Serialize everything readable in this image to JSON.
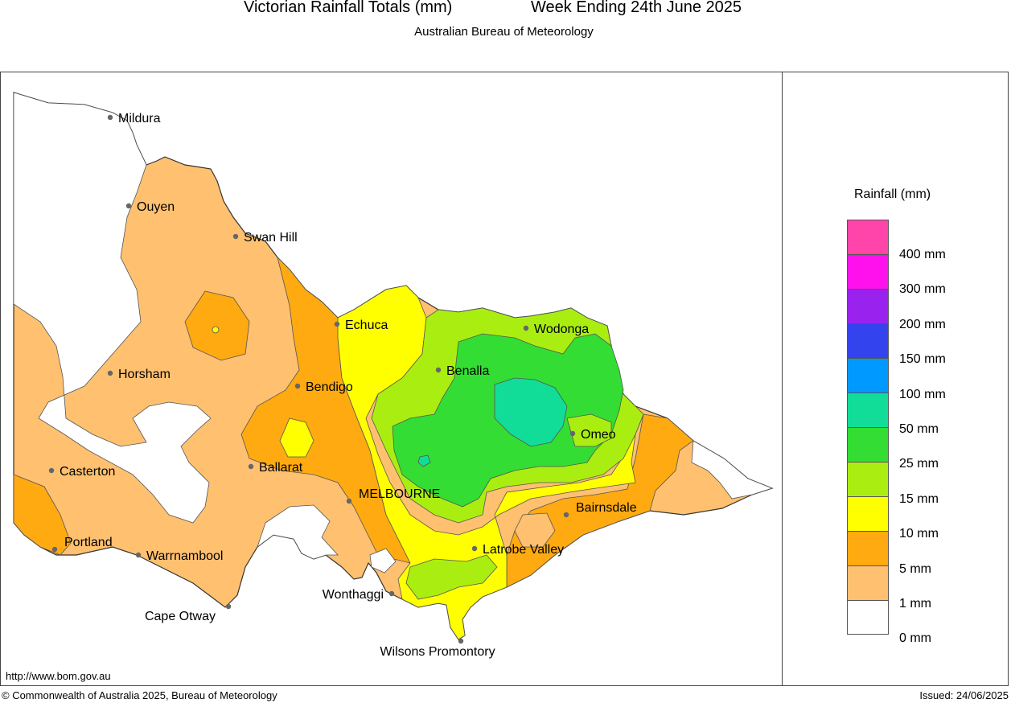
{
  "header": {
    "title": "Victorian Rainfall Totals (mm)",
    "period": "Week Ending 24th June 2025",
    "subtitle": "Australian Bureau of Meteorology"
  },
  "map": {
    "places": [
      {
        "name": "Mildura"
      },
      {
        "name": "Ouyen"
      },
      {
        "name": "Swan Hill"
      },
      {
        "name": "Echuca"
      },
      {
        "name": "Wodonga"
      },
      {
        "name": "Benalla"
      },
      {
        "name": "Horsham"
      },
      {
        "name": "Bendigo"
      },
      {
        "name": "Omeo"
      },
      {
        "name": "Ballarat"
      },
      {
        "name": "Casterton"
      },
      {
        "name": "MELBOURNE"
      },
      {
        "name": "Bairnsdale"
      },
      {
        "name": "Portland"
      },
      {
        "name": "Warrnambool"
      },
      {
        "name": "Latrobe Valley"
      },
      {
        "name": "Wonthaggi"
      },
      {
        "name": "Cape Otway"
      },
      {
        "name": "Wilsons Promontory"
      }
    ]
  },
  "legend": {
    "title": "Rainfall (mm)",
    "colors": [
      "#ff44aa",
      "#ff11ee",
      "#9922ee",
      "#3344ee",
      "#0099ff",
      "#11dd99",
      "#33dd33",
      "#aaee11",
      "#ffff00",
      "#ffaa11",
      "#ffc070",
      "#ffffff"
    ],
    "labels": [
      "400 mm",
      "300 mm",
      "200 mm",
      "150 mm",
      "100 mm",
      "50 mm",
      "25 mm",
      "15 mm",
      "10 mm",
      "5 mm",
      "1 mm",
      "0 mm"
    ]
  },
  "footer": {
    "url": "http://www.bom.gov.au",
    "copyright": "© Commonwealth of Australia 2025, Bureau of Meteorology",
    "issued": "Issued: 24/06/2025"
  }
}
